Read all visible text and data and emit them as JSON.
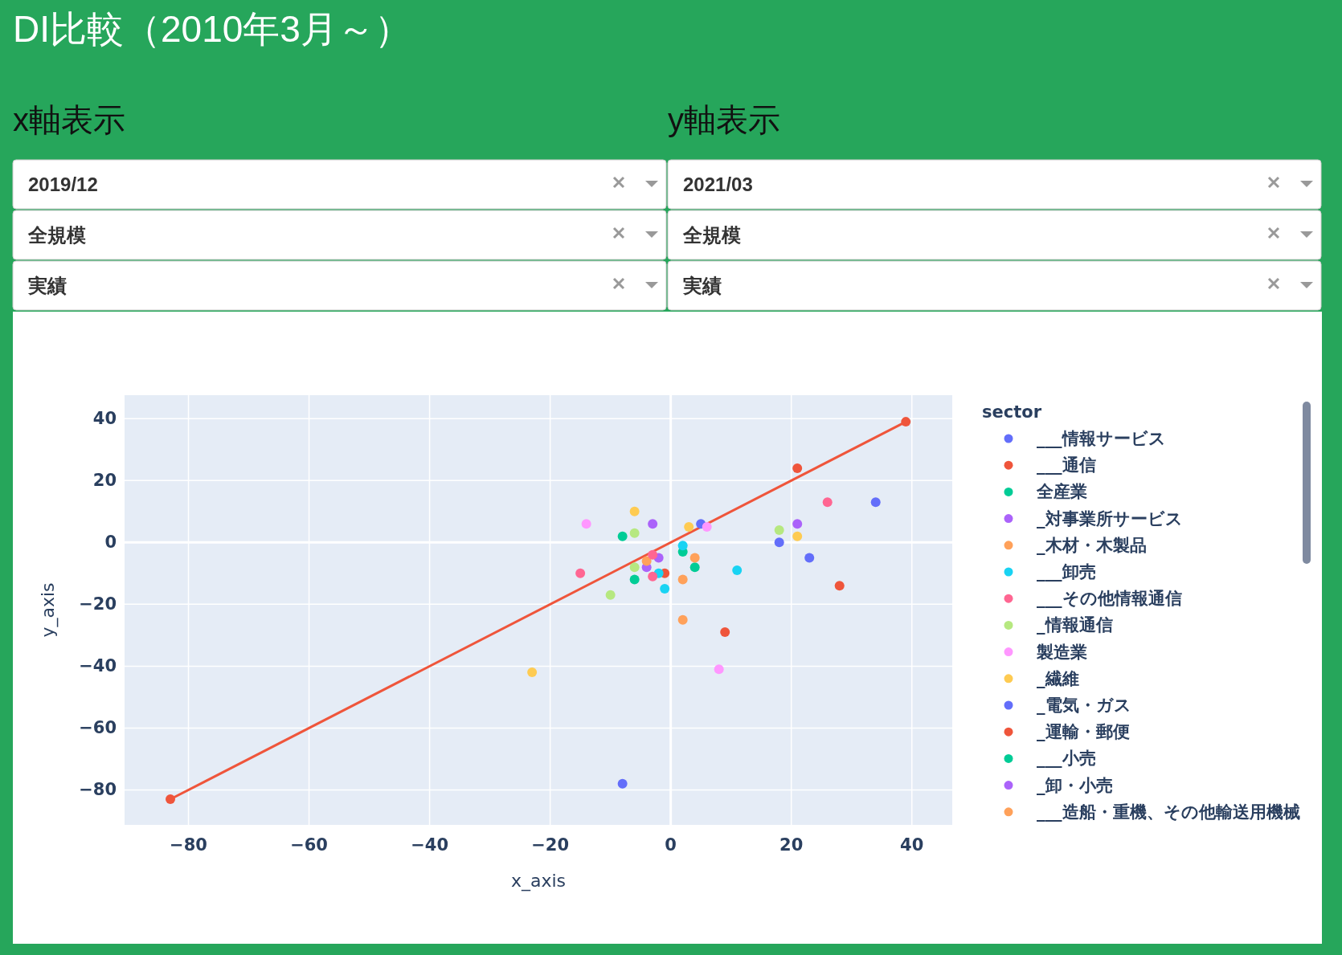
{
  "chart_data": {
    "type": "scatter",
    "title": "DI比較（2010年3月～）",
    "annotations": [
      "x軸表示",
      "y軸表示",
      "2019/12",
      "全規模",
      "実績",
      "2021/03",
      "全規模",
      "実績"
    ],
    "xlabel": "x_axis",
    "ylabel": "y_axis",
    "legend_title": "sector",
    "legend": "right",
    "grid": true,
    "marker": "circle",
    "xlim": [
      -90.6,
      46.7
    ],
    "ylim": [
      -91.3,
      47.6
    ],
    "xticks": [
      -80,
      -60,
      -40,
      -20,
      0,
      20,
      40
    ],
    "yticks": [
      -80,
      -60,
      -40,
      -20,
      0,
      20,
      40
    ],
    "series": [
      {
        "type": "line",
        "color": "#ef553b",
        "x": [
          -83,
          39
        ],
        "values": [
          -83,
          39
        ]
      },
      {
        "x": [
          21,
          -1,
          9,
          28,
          5,
          18,
          23,
          34,
          -8,
          -8,
          2,
          4,
          -6,
          -3,
          -2,
          -4,
          21,
          -4,
          4,
          2,
          2,
          2,
          -2,
          -1,
          11,
          -3,
          -15,
          -3,
          26,
          -6,
          -6,
          -10,
          18,
          -14,
          6,
          8,
          -6,
          3,
          -23,
          21
        ],
        "values": [
          24,
          -10,
          -29,
          -14,
          6,
          0,
          -5,
          13,
          -78,
          2,
          -3,
          -8,
          -12,
          6,
          -5,
          -8,
          6,
          -6,
          -5,
          -12,
          -25,
          -1,
          -10,
          -15,
          -9,
          -4,
          -10,
          -11,
          13,
          3,
          -8,
          -17,
          4,
          6,
          5,
          -41,
          10,
          5,
          -42,
          2
        ],
        "colors": [
          "#ef553b",
          "#ef553b",
          "#ef553b",
          "#ef553b",
          "#636efa",
          "#636efa",
          "#636efa",
          "#636efa",
          "#636efa",
          "#00cc96",
          "#00cc96",
          "#00cc96",
          "#00cc96",
          "#ab63fa",
          "#ab63fa",
          "#ab63fa",
          "#ab63fa",
          "#ffa15a",
          "#ffa15a",
          "#ffa15a",
          "#ffa15a",
          "#19d3f3",
          "#19d3f3",
          "#19d3f3",
          "#19d3f3",
          "#ff6692",
          "#ff6692",
          "#ff6692",
          "#ff6692",
          "#b6e880",
          "#b6e880",
          "#b6e880",
          "#b6e880",
          "#ff97ff",
          "#ff97ff",
          "#ff97ff",
          "#fecb52",
          "#fecb52",
          "#fecb52",
          "#fecb52"
        ]
      },
      {
        "name": "___情報サービス",
        "color": "#636efa",
        "values": [
          null
        ]
      },
      {
        "name": "___通信",
        "color": "#ef553b",
        "values": [
          null
        ]
      },
      {
        "name": "全産業",
        "color": "#00cc96",
        "values": [
          null
        ]
      },
      {
        "name": "_対事業所サービス",
        "color": "#ab63fa",
        "values": [
          null
        ]
      },
      {
        "name": "_木材・木製品",
        "color": "#ffa15a",
        "values": [
          null
        ]
      },
      {
        "name": "___卸売",
        "color": "#19d3f3",
        "values": [
          null
        ]
      },
      {
        "name": "___その他情報通信",
        "color": "#ff6692",
        "values": [
          null
        ]
      },
      {
        "name": "_情報通信",
        "color": "#b6e880",
        "values": [
          null
        ]
      },
      {
        "name": "製造業",
        "color": "#ff97ff",
        "values": [
          null
        ]
      },
      {
        "name": "_繊維",
        "color": "#fecb52",
        "values": [
          null
        ]
      },
      {
        "name": "_電気・ガス",
        "color": "#636efa",
        "values": [
          null
        ]
      },
      {
        "name": "_運輸・郵便",
        "color": "#ef553b",
        "values": [
          null
        ]
      },
      {
        "name": "___小売",
        "color": "#00cc96",
        "values": [
          null
        ]
      },
      {
        "name": "_卸・小売",
        "color": "#ab63fa",
        "values": [
          null
        ]
      },
      {
        "name": "___造船・重機、その他輸送用機械",
        "color": "#ffa15a",
        "values": [
          null
        ]
      }
    ]
  }
}
